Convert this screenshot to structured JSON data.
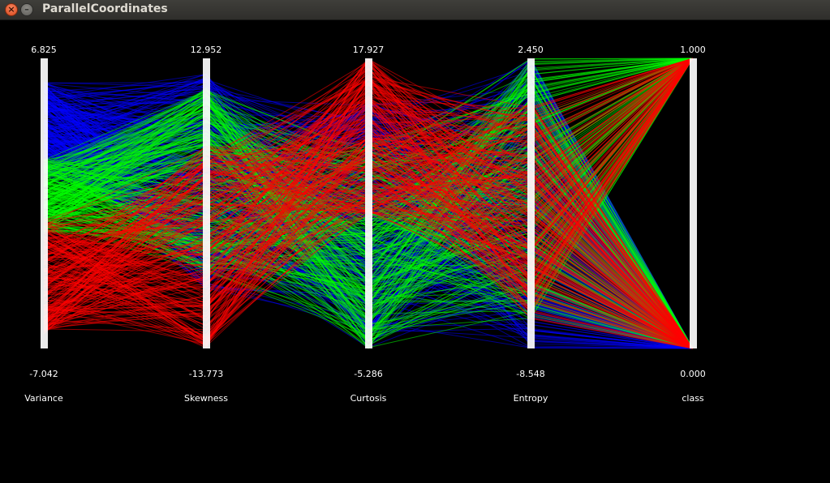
{
  "window": {
    "title": "ParallelCoordinates"
  },
  "icons": {
    "close": "close-icon",
    "minimize": "minimize-icon"
  },
  "chart_data": {
    "type": "parallel-coordinates",
    "axes": [
      {
        "name": "Variance",
        "max": "6.825",
        "min": "-7.042"
      },
      {
        "name": "Skewness",
        "max": "12.952",
        "min": "-13.773"
      },
      {
        "name": "Curtosis",
        "max": "17.927",
        "min": "-5.286"
      },
      {
        "name": "Entropy",
        "max": "2.450",
        "min": "-8.548"
      },
      {
        "name": "class",
        "max": "1.000",
        "min": "0.000"
      }
    ],
    "series_colors": [
      "#0000ff",
      "#00ff00",
      "#ff0000"
    ],
    "background": "#000000",
    "axis_color": "#ffffff"
  }
}
